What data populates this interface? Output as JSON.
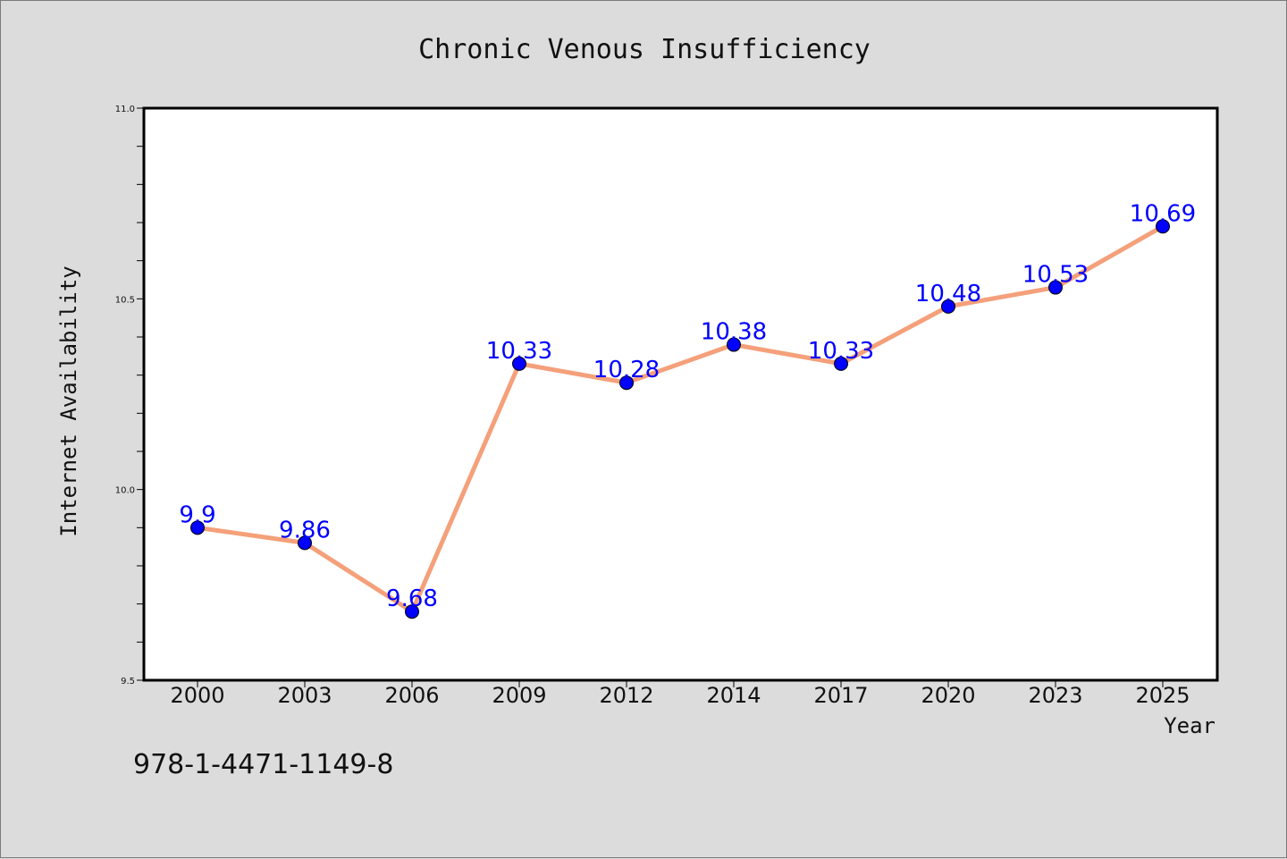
{
  "chart_data": {
    "type": "line",
    "title": "Chronic Venous Insufficiency",
    "xlabel": "Year",
    "ylabel": "Internet Availability",
    "categories": [
      "2000",
      "2003",
      "2006",
      "2009",
      "2012",
      "2014",
      "2017",
      "2020",
      "2023",
      "2025"
    ],
    "series": [
      {
        "values": [
          9.9,
          9.86,
          9.68,
          10.33,
          10.28,
          10.38,
          10.33,
          10.48,
          10.53,
          10.69
        ],
        "line_color": "#f4a07a",
        "marker_color": "#0000ff"
      }
    ],
    "data_labels": [
      "9.9",
      "9.86",
      "9.68",
      "10.33",
      "10.28",
      "10.38",
      "10.33",
      "10.48",
      "10.53",
      "10.69"
    ],
    "ylim": [
      9.5,
      11.0
    ],
    "yticks": [
      9.5,
      10.0,
      10.5,
      11.0
    ],
    "ytick_labels": [
      "9.5",
      "10.0",
      "10.5",
      "11.0"
    ],
    "y_minor_step": 0.1,
    "grid": false,
    "legend": "none"
  },
  "footnote": "978-1-4471-1149-8",
  "colors": {
    "background": "#dcdcdc",
    "plot_area": "#ffffff",
    "line": "#f4a07a",
    "marker": "#0000ff",
    "data_label": "#0000ff"
  }
}
